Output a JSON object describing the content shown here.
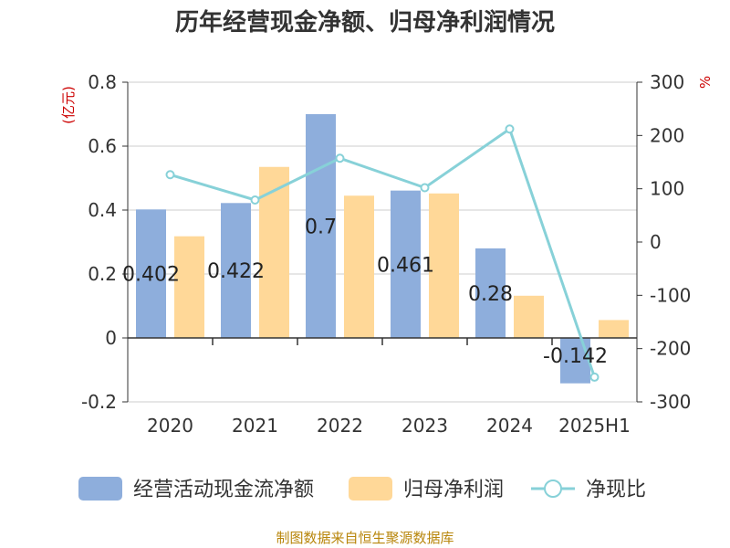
{
  "title": "历年经营现金净额、归母净利润情况",
  "source": "制图数据来自恒生聚源数据库",
  "chart_data": {
    "type": "bar",
    "categories": [
      "2020",
      "2021",
      "2022",
      "2023",
      "2024",
      "2025H1"
    ],
    "left_axis": {
      "unit": "(亿元)",
      "ylim": [
        -0.2,
        0.8
      ],
      "ticks": [
        "0.8",
        "0.6",
        "0.4",
        "0.2",
        "0",
        "-0.2"
      ],
      "tick_values": [
        0.8,
        0.6,
        0.4,
        0.2,
        0,
        -0.2
      ]
    },
    "right_axis": {
      "unit": "%",
      "ylim": [
        -300,
        300
      ],
      "ticks": [
        "300",
        "200",
        "100",
        "0",
        "-100",
        "-200",
        "-300"
      ],
      "tick_values": [
        300,
        200,
        100,
        0,
        -100,
        -200,
        -300
      ]
    },
    "grid": true,
    "legend_position": "bottom",
    "series": [
      {
        "name": "经营活动现金流净额",
        "type": "bar",
        "axis": "left",
        "color": "#8eaedc",
        "values": [
          0.402,
          0.422,
          0.7,
          0.461,
          0.28,
          -0.142
        ],
        "labels": [
          "0.402",
          "0.422",
          "0.7",
          "0.461",
          "0.28",
          "-0.142"
        ]
      },
      {
        "name": "归母净利润",
        "type": "bar",
        "axis": "left",
        "color": "#ffd898",
        "values": [
          0.318,
          0.535,
          0.445,
          0.452,
          0.132,
          0.056
        ]
      },
      {
        "name": "净现比",
        "type": "line",
        "axis": "right",
        "color": "#87d1d8",
        "values": [
          126.4,
          78.9,
          157.3,
          102.0,
          212.1,
          -253.6
        ]
      }
    ]
  }
}
